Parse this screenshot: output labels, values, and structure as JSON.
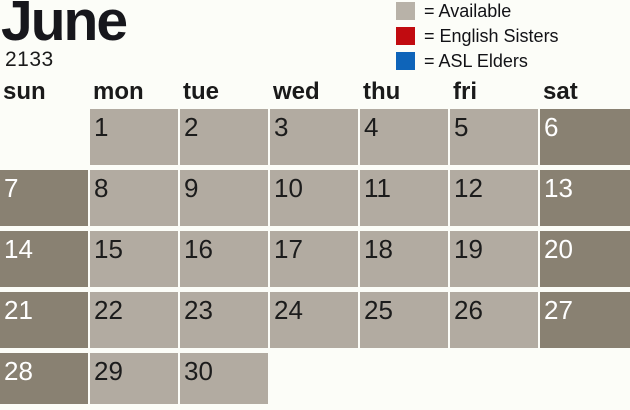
{
  "header": {
    "month": "June",
    "year": "2133"
  },
  "legend": [
    {
      "name": "available",
      "label": "= Available",
      "color": "#b8b2a8"
    },
    {
      "name": "english-sisters",
      "label": "= English Sisters",
      "color": "#c10b10"
    },
    {
      "name": "asl-elders",
      "label": "= ASL Elders",
      "color": "#0e64b9"
    }
  ],
  "calendar": {
    "weekdays": [
      "sun",
      "mon",
      "tue",
      "wed",
      "thu",
      "fri",
      "sat"
    ],
    "weeks": [
      [
        null,
        {
          "day": "1",
          "shade": "light"
        },
        {
          "day": "2",
          "shade": "light"
        },
        {
          "day": "3",
          "shade": "light"
        },
        {
          "day": "4",
          "shade": "light"
        },
        {
          "day": "5",
          "shade": "light"
        },
        {
          "day": "6",
          "shade": "dark"
        }
      ],
      [
        {
          "day": "7",
          "shade": "dark"
        },
        {
          "day": "8",
          "shade": "light"
        },
        {
          "day": "9",
          "shade": "light"
        },
        {
          "day": "10",
          "shade": "light"
        },
        {
          "day": "11",
          "shade": "light"
        },
        {
          "day": "12",
          "shade": "light"
        },
        {
          "day": "13",
          "shade": "dark"
        }
      ],
      [
        {
          "day": "14",
          "shade": "dark"
        },
        {
          "day": "15",
          "shade": "light"
        },
        {
          "day": "16",
          "shade": "light"
        },
        {
          "day": "17",
          "shade": "light"
        },
        {
          "day": "18",
          "shade": "light"
        },
        {
          "day": "19",
          "shade": "light"
        },
        {
          "day": "20",
          "shade": "dark"
        }
      ],
      [
        {
          "day": "21",
          "shade": "dark"
        },
        {
          "day": "22",
          "shade": "light"
        },
        {
          "day": "23",
          "shade": "light"
        },
        {
          "day": "24",
          "shade": "light"
        },
        {
          "day": "25",
          "shade": "light"
        },
        {
          "day": "26",
          "shade": "light"
        },
        {
          "day": "27",
          "shade": "dark"
        }
      ],
      [
        {
          "day": "28",
          "shade": "dark"
        },
        {
          "day": "29",
          "shade": "light"
        },
        {
          "day": "30",
          "shade": "light"
        },
        null,
        null,
        null,
        null
      ]
    ]
  },
  "colors": {
    "page_background": "#fcfdf8",
    "cell_light": "#b2aba1",
    "cell_dark": "#898172",
    "day_text_on_light": "#1c1c1c",
    "day_text_on_dark": "#ffffff"
  }
}
